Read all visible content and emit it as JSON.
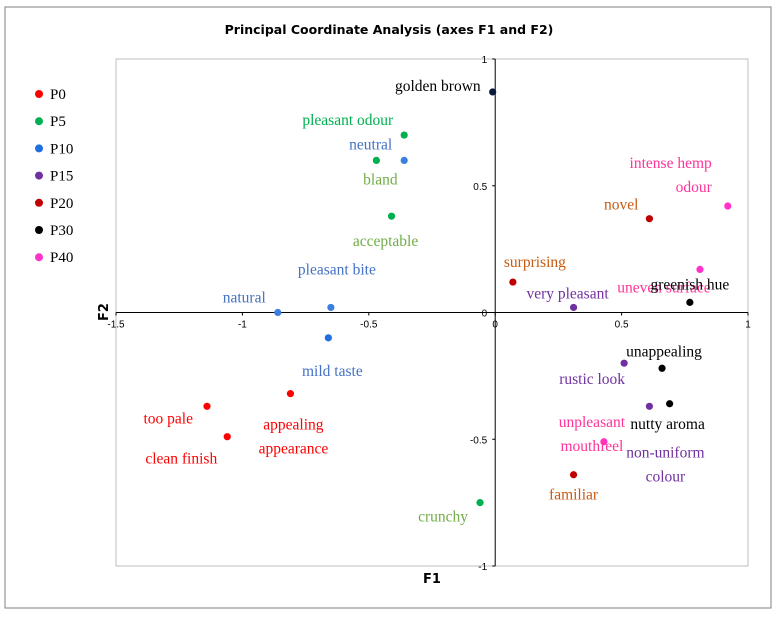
{
  "chart_data": {
    "type": "scatter",
    "title": "Principal Coordinate Analysis (axes F1 and F2)",
    "xlabel": "F1",
    "ylabel": "F2",
    "xlim": [
      -1.5,
      1
    ],
    "ylim": [
      -1,
      1
    ],
    "x_ticks": [
      "-1.5",
      "-1",
      "-0.5",
      "0",
      "0.5",
      "1"
    ],
    "y_ticks": [
      "1",
      "0.5",
      "0",
      "-0.5",
      "-1"
    ],
    "legend_position": "left",
    "legend": [
      {
        "name": "P0",
        "color": "#ff0000"
      },
      {
        "name": "P5",
        "color": "#00b050"
      },
      {
        "name": "P10",
        "color": "#1f6fe0"
      },
      {
        "name": "P15",
        "color": "#7030a0"
      },
      {
        "name": "P20",
        "color": "#c00000"
      },
      {
        "name": "P30",
        "color": "#000000"
      },
      {
        "name": "P40",
        "color": "#ff33cc"
      }
    ],
    "points": [
      {
        "x": -0.01,
        "y": 0.87,
        "color": "#0d1a40",
        "label": "golden brown",
        "label_color": "#000000"
      },
      {
        "x": -0.36,
        "y": 0.7,
        "color": "#00b050",
        "label": "pleasant odour",
        "label_color": "#00b050"
      },
      {
        "x": -0.36,
        "y": 0.6,
        "color": "#3b7fe0",
        "label": "neutral",
        "label_color": "#4472c4"
      },
      {
        "x": -0.47,
        "y": 0.6,
        "color": "#00b050",
        "label": "bland",
        "label_color": "#70ad47"
      },
      {
        "x": -0.41,
        "y": 0.38,
        "color": "#00b050",
        "label": "acceptable",
        "label_color": "#70ad47"
      },
      {
        "x": -0.65,
        "y": 0.02,
        "color": "#3b7fe0",
        "label": "pleasant bite",
        "label_color": "#4472c4"
      },
      {
        "x": -0.86,
        "y": 0.0,
        "color": "#3b7fe0",
        "label": "natural",
        "label_color": "#4472c4"
      },
      {
        "x": -0.66,
        "y": -0.1,
        "color": "#1f6fe0",
        "label": "mild taste",
        "label_color": "#4472c4"
      },
      {
        "x": -1.14,
        "y": -0.37,
        "color": "#ff0000",
        "label": "too pale",
        "label_color": "#ff0000"
      },
      {
        "x": -1.06,
        "y": -0.49,
        "color": "#ff0000",
        "label": "clean finish",
        "label_color": "#ff0000"
      },
      {
        "x": -0.81,
        "y": -0.32,
        "color": "#ff0000",
        "label": "appealing appearance",
        "label_color": "#ff0000"
      },
      {
        "x": -0.06,
        "y": -0.75,
        "color": "#00b050",
        "label": "crunchy",
        "label_color": "#70ad47"
      },
      {
        "x": 0.07,
        "y": 0.12,
        "color": "#c00000",
        "label": "surprising",
        "label_color": "#c55a11"
      },
      {
        "x": 0.31,
        "y": 0.02,
        "color": "#7030a0",
        "label": "very pleasant",
        "label_color": "#7030a0"
      },
      {
        "x": 0.61,
        "y": 0.37,
        "color": "#c00000",
        "label": "novel",
        "label_color": "#c55a11"
      },
      {
        "x": 0.92,
        "y": 0.42,
        "color": "#ff33cc",
        "label": "intense hemp odour",
        "label_color": "#ff3399"
      },
      {
        "x": 0.81,
        "y": 0.17,
        "color": "#ff33cc",
        "label": "uneven surface",
        "label_color": "#ff3399"
      },
      {
        "x": 0.77,
        "y": 0.04,
        "color": "#000000",
        "label": "greenish hue",
        "label_color": "#000000"
      },
      {
        "x": 0.51,
        "y": -0.2,
        "color": "#7030a0",
        "label": "rustic look",
        "label_color": "#7030a0"
      },
      {
        "x": 0.66,
        "y": -0.22,
        "color": "#000000",
        "label": "unappealing",
        "label_color": "#000000"
      },
      {
        "x": 0.69,
        "y": -0.36,
        "color": "#000000",
        "label": "nutty aroma",
        "label_color": "#000000"
      },
      {
        "x": 0.61,
        "y": -0.37,
        "color": "#7030a0",
        "label": "non-uniform colour",
        "label_color": "#7030a0"
      },
      {
        "x": 0.43,
        "y": -0.51,
        "color": "#ff33cc",
        "label": "unpleasant mouthfeel",
        "label_color": "#ff3399"
      },
      {
        "x": 0.31,
        "y": -0.64,
        "color": "#c00000",
        "label": "familiar",
        "label_color": "#c55a11"
      }
    ]
  }
}
